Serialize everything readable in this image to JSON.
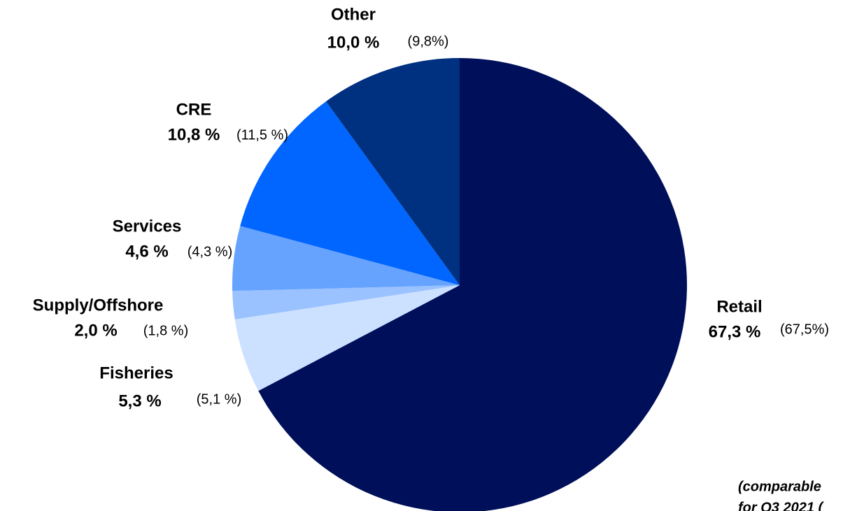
{
  "chart_data": {
    "type": "pie",
    "categories": [
      "Retail",
      "Fisheries",
      "Supply/Offshore",
      "Services",
      "CRE",
      "Other"
    ],
    "values": [
      67.3,
      5.3,
      2.0,
      4.6,
      10.8,
      10.0
    ],
    "value_labels": [
      "67,3 %",
      "5,3 %",
      "2,0 %",
      "4,6 %",
      "10,8 %",
      "10,0 %"
    ],
    "comparable_labels": [
      "(67,5%)",
      "(5,1 %)",
      "(1,8 %)",
      "(4,3 %)",
      "(11,5 %)",
      "(9,8%)"
    ],
    "colors": [
      "#000f5a",
      "#cce0ff",
      "#99c2ff",
      "#66a3ff",
      "#0066ff",
      "#003080"
    ],
    "note": [
      "(comparable",
      "for Q3 2021 ("
    ]
  }
}
